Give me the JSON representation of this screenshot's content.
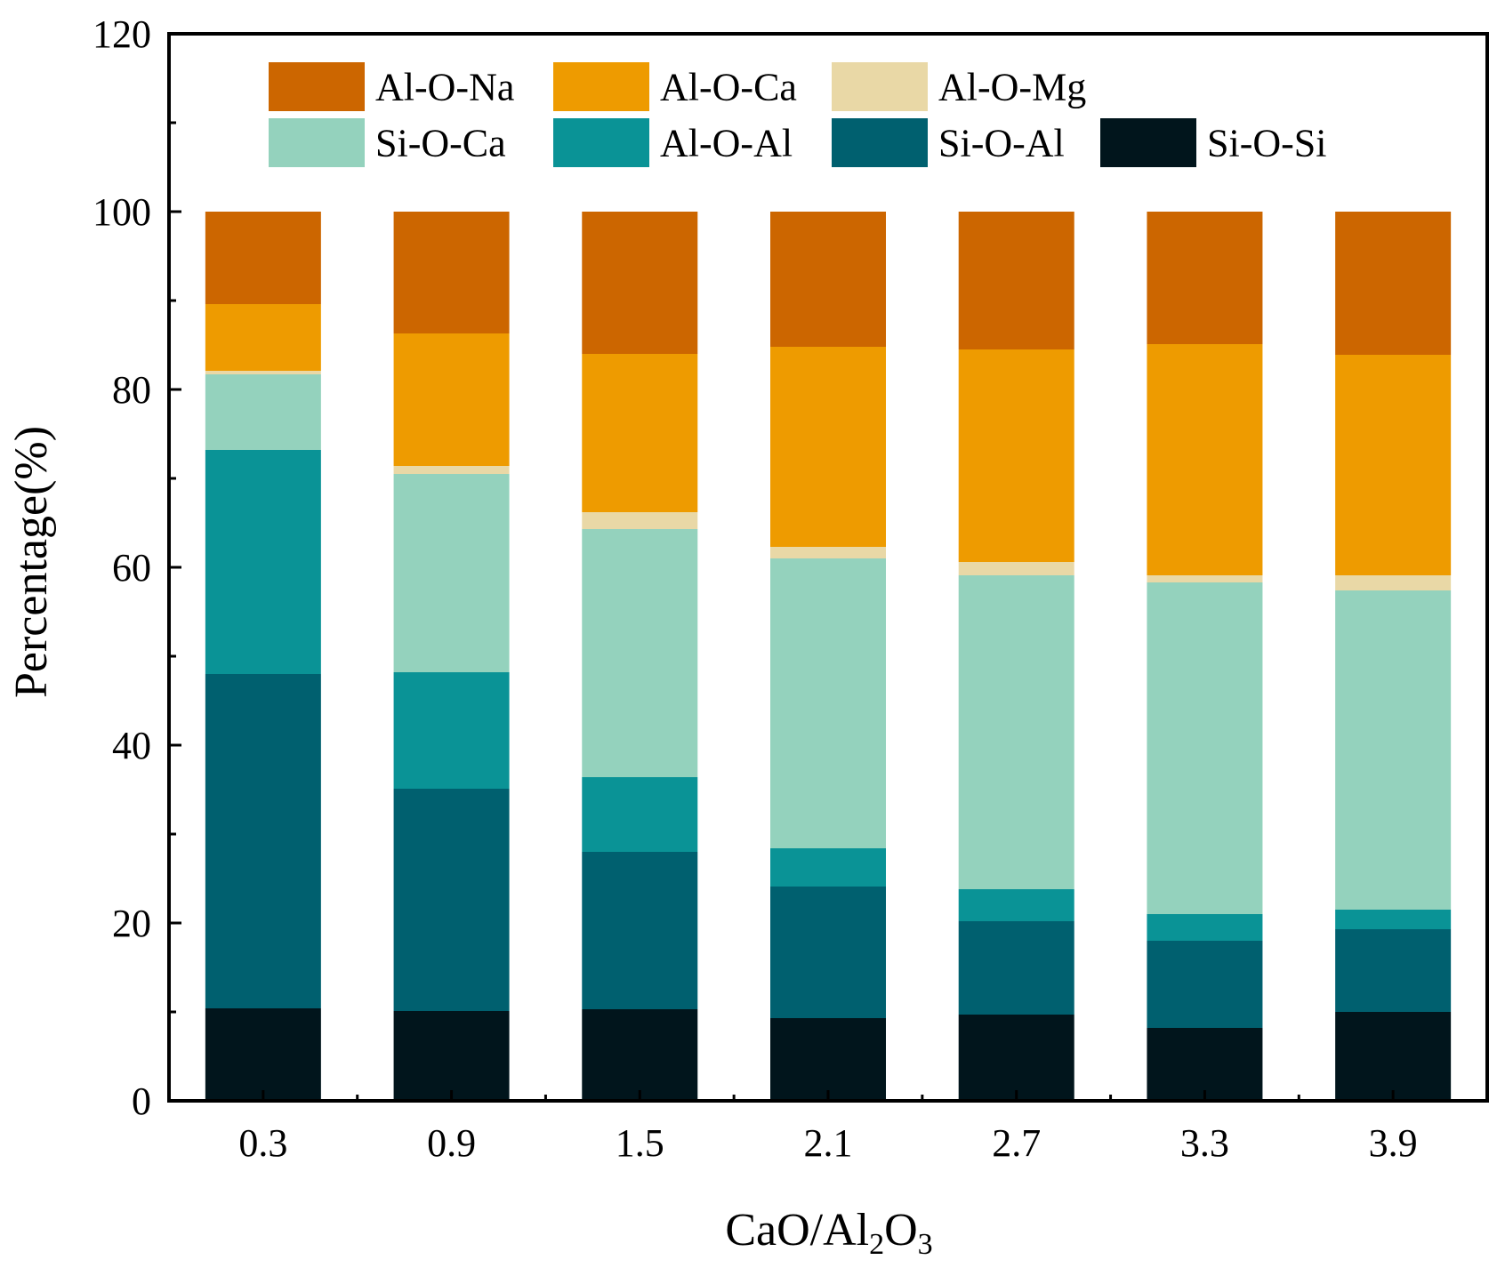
{
  "chart_data": {
    "type": "bar",
    "stacked": true,
    "title": "",
    "xlabel": "CaO/Al2O3",
    "xlabel_parts": {
      "main": "CaO/Al",
      "sub1": "2",
      "mid": "O",
      "sub2": "3"
    },
    "ylabel": "Percentage(%)",
    "ylim": [
      0,
      120
    ],
    "yticks": [
      0,
      20,
      40,
      60,
      80,
      100,
      120
    ],
    "grid": false,
    "legend_position": "top",
    "categories": [
      "0.3",
      "0.9",
      "1.5",
      "2.1",
      "2.7",
      "3.3",
      "3.9"
    ],
    "series": [
      {
        "name": "Si-O-Si",
        "color": "#01151c",
        "values": [
          10.4,
          10.1,
          10.3,
          9.3,
          9.7,
          8.2,
          10.0
        ]
      },
      {
        "name": "Si-O-Al",
        "color": "#00606f",
        "values": [
          37.6,
          25.0,
          17.7,
          14.8,
          10.5,
          9.8,
          9.3
        ]
      },
      {
        "name": "Al-O-Al",
        "color": "#0a9396",
        "values": [
          25.2,
          13.1,
          8.4,
          4.3,
          3.6,
          3.0,
          2.2
        ]
      },
      {
        "name": "Si-O-Ca",
        "color": "#94d2bd",
        "values": [
          8.5,
          22.3,
          27.9,
          32.6,
          35.3,
          37.3,
          35.9
        ]
      },
      {
        "name": "Al-O-Mg",
        "color": "#e9d8a6",
        "values": [
          0.4,
          0.9,
          1.9,
          1.3,
          1.5,
          0.8,
          1.7
        ]
      },
      {
        "name": "Al-O-Ca",
        "color": "#ee9b00",
        "values": [
          7.5,
          14.9,
          17.8,
          22.5,
          23.9,
          26.0,
          24.8
        ]
      },
      {
        "name": "Al-O-Na",
        "color": "#cc6600",
        "values": [
          10.4,
          13.7,
          16.0,
          15.2,
          15.5,
          14.9,
          16.1
        ]
      }
    ],
    "legend_order": [
      [
        "Al-O-Na",
        "Al-O-Ca",
        "Al-O-Mg"
      ],
      [
        "Si-O-Ca",
        "Al-O-Al",
        "Si-O-Al",
        "Si-O-Si"
      ]
    ]
  }
}
